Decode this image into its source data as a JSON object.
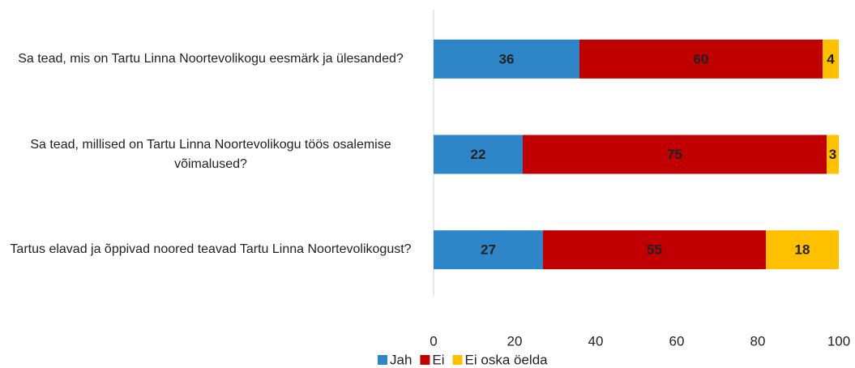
{
  "chart_data": {
    "type": "stacked-bar-horizontal",
    "categories": [
      "Sa tead, mis on Tartu Linna Noortevolikogu eesmärk ja ülesanded?",
      "Sa tead, millised on Tartu Linna Noortevolikogu töös osalemise võimalused?",
      "Tartus elavad ja õppivad noored teavad Tartu Linna Noortevolikogust?"
    ],
    "series": [
      {
        "name": "Jah",
        "color": "#2e86c8",
        "values": [
          36,
          22,
          27
        ]
      },
      {
        "name": "Ei",
        "color": "#c00000",
        "values": [
          60,
          75,
          55
        ]
      },
      {
        "name": "Ei oska öelda",
        "color": "#ffc000",
        "values": [
          4,
          3,
          18
        ]
      }
    ],
    "xlim": [
      0,
      100
    ],
    "xticks": [
      0,
      20,
      40,
      60,
      80,
      100
    ],
    "legend": "bottom"
  }
}
